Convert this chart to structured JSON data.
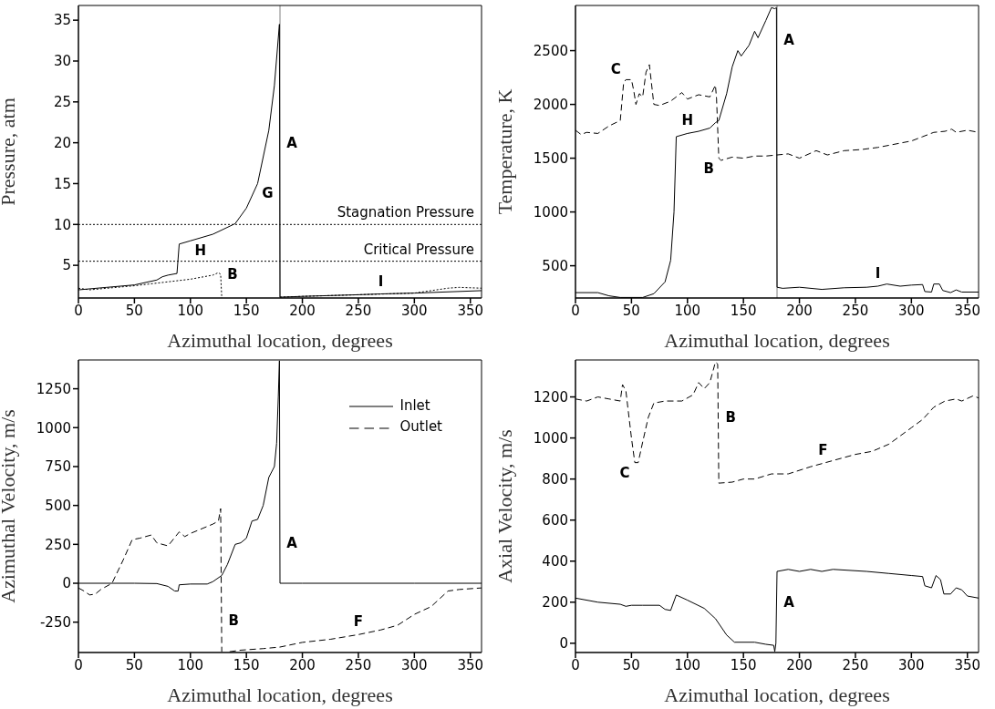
{
  "chart_data": [
    {
      "type": "line",
      "xlabel": "Azimuthal location, degrees",
      "ylabel": "Pressure, atm",
      "xlim": [
        0,
        360
      ],
      "xticks": [
        0,
        50,
        100,
        150,
        200,
        250,
        300,
        350
      ],
      "ylim": [
        1,
        36.8
      ],
      "yticks": [
        5,
        10,
        15,
        20,
        25,
        30,
        35
      ],
      "series": [
        {
          "color": "#000000",
          "line_style": "solid",
          "x": [
            0,
            25,
            50,
            70,
            75,
            80,
            88,
            90,
            100,
            120,
            140,
            150,
            160,
            170,
            175,
            178,
            179.5,
            180,
            200,
            250,
            270,
            300,
            360
          ],
          "values": [
            2.0,
            2.3,
            2.6,
            3.2,
            3.6,
            3.8,
            4.0,
            7.6,
            8.0,
            8.8,
            10.1,
            12,
            15,
            21.5,
            27,
            32,
            34.5,
            1.1,
            1.2,
            1.4,
            1.5,
            1.6,
            1.9
          ]
        },
        {
          "color": "#000000",
          "line_style": "dotted",
          "x": [
            0,
            10,
            50,
            100,
            120,
            125,
            127,
            128,
            129,
            180,
            200,
            250,
            300,
            330,
            340,
            360
          ],
          "values": [
            2.2,
            2.0,
            2.5,
            3.3,
            3.8,
            4.1,
            3.9,
            1.0,
            null,
            1.1,
            1.2,
            1.4,
            1.6,
            2.2,
            2.3,
            2.2
          ]
        }
      ],
      "ref_lines": [
        {
          "axis": "y",
          "value": 10,
          "label": "Stagnation Pressure",
          "color": "#000000",
          "line_style": "dotted"
        },
        {
          "axis": "y",
          "value": 5.5,
          "label": "Critical Pressure",
          "color": "#000000",
          "line_style": "dotted"
        },
        {
          "axis": "x",
          "value": 180,
          "color": "#808080",
          "line_style": "solid"
        }
      ],
      "annotations": [
        {
          "text": "G",
          "x": 160,
          "y": 15
        },
        {
          "text": "A",
          "x": 180,
          "y": 20
        },
        {
          "text": "H",
          "x": 100,
          "y": 8.0
        },
        {
          "text": "B",
          "x": 127,
          "y": 3.9
        },
        {
          "text": "I",
          "x": 270,
          "y": 1.5
        }
      ]
    },
    {
      "type": "line",
      "xlabel": "Azimuthal location, degrees",
      "ylabel": "Temperature, K",
      "xlim": [
        0,
        360
      ],
      "xticks": [
        0,
        50,
        100,
        150,
        200,
        250,
        300,
        350
      ],
      "ylim": [
        200,
        2920
      ],
      "yticks": [
        500,
        1000,
        1500,
        2000,
        2500
      ],
      "series": [
        {
          "color": "#000000",
          "line_style": "solid",
          "x": [
            0,
            20,
            30,
            40,
            60,
            70,
            80,
            85,
            88,
            90,
            100,
            110,
            120,
            125,
            128,
            135,
            140,
            145,
            148,
            155,
            160,
            163,
            170,
            175,
            178,
            179.5,
            180,
            185,
            200,
            220,
            240,
            260,
            270,
            278,
            290,
            300,
            310,
            312,
            318,
            320,
            325,
            328,
            335,
            340,
            345,
            360
          ],
          "values": [
            250,
            250,
            220,
            205,
            205,
            240,
            350,
            550,
            1000,
            1700,
            1730,
            1750,
            1780,
            1830,
            1850,
            2100,
            2350,
            2500,
            2450,
            2550,
            2680,
            2620,
            2780,
            2900,
            2890,
            2900,
            300,
            290,
            300,
            280,
            295,
            300,
            310,
            330,
            310,
            320,
            325,
            260,
            255,
            330,
            330,
            270,
            250,
            275,
            255,
            255
          ]
        },
        {
          "color": "#000000",
          "line_style": "dashed",
          "x": [
            0,
            5,
            10,
            20,
            30,
            40,
            43,
            45,
            50,
            52,
            54,
            57,
            60,
            63,
            66,
            70,
            75,
            85,
            95,
            100,
            110,
            120,
            125,
            126,
            128,
            130,
            140,
            150,
            160,
            170,
            180,
            190,
            200,
            215,
            225,
            240,
            255,
            270,
            280,
            290,
            300,
            310,
            320,
            330,
            336,
            340,
            350,
            360
          ],
          "values": [
            1760,
            1720,
            1740,
            1730,
            1800,
            1850,
            2200,
            2230,
            2230,
            2130,
            2000,
            2100,
            2070,
            2300,
            2370,
            2000,
            1990,
            2030,
            2110,
            2050,
            2090,
            2070,
            2180,
            2050,
            1500,
            1480,
            1510,
            1500,
            1520,
            1520,
            1530,
            1540,
            1500,
            1570,
            1530,
            1570,
            1580,
            1600,
            1620,
            1640,
            1660,
            1700,
            1740,
            1750,
            1770,
            1740,
            1760,
            1740
          ]
        }
      ],
      "ref_lines": [
        {
          "axis": "x",
          "value": 180,
          "color": "#808080",
          "line_style": "solid"
        }
      ],
      "annotations": [
        {
          "text": "C",
          "x": 45,
          "y": 2230
        },
        {
          "text": "H",
          "x": 100,
          "y": 1730
        },
        {
          "text": "B",
          "x": 128,
          "y": 1500
        },
        {
          "text": "A",
          "x": 180,
          "y": 2600
        },
        {
          "text": "I",
          "x": 270,
          "y": 310
        }
      ]
    },
    {
      "type": "line",
      "xlabel": "Azimuthal location, degrees",
      "ylabel": "Azimuthal Velocity, m/s",
      "xlim": [
        0,
        360
      ],
      "xticks": [
        0,
        50,
        100,
        150,
        200,
        250,
        300,
        350
      ],
      "ylim": [
        -445,
        1435
      ],
      "yticks": [
        -250,
        0,
        250,
        500,
        750,
        1000,
        1250
      ],
      "legend": "top right",
      "series": [
        {
          "name": "Inlet",
          "color": "#000000",
          "line_style": "solid",
          "x": [
            0,
            50,
            70,
            80,
            86,
            89,
            90,
            100,
            115,
            120,
            128,
            133,
            140,
            145,
            150,
            155,
            160,
            165,
            170,
            175,
            177,
            178.5,
            179.5,
            180,
            200,
            300,
            360
          ],
          "values": [
            0,
            0,
            -2,
            -20,
            -50,
            -50,
            -10,
            -5,
            -5,
            10,
            50,
            120,
            250,
            260,
            290,
            400,
            410,
            500,
            680,
            750,
            900,
            1200,
            1430,
            0,
            0,
            0,
            0
          ]
        },
        {
          "name": "Outlet",
          "color": "#000000",
          "line_style": "dashed",
          "x": [
            0,
            5,
            10,
            15,
            20,
            30,
            40,
            48,
            55,
            65,
            70,
            80,
            90,
            95,
            100,
            110,
            120,
            125,
            127,
            128,
            129,
            135,
            145,
            165,
            180,
            200,
            225,
            250,
            270,
            285,
            300,
            315,
            330,
            340,
            360
          ],
          "values": [
            -30,
            -50,
            -75,
            -70,
            -40,
            0,
            150,
            280,
            290,
            310,
            260,
            240,
            330,
            300,
            320,
            350,
            380,
            400,
            480,
            -440,
            null,
            -440,
            -430,
            -420,
            -410,
            -380,
            -360,
            -330,
            -300,
            -270,
            -200,
            -150,
            -50,
            -40,
            -30
          ]
        }
      ],
      "annotations": [
        {
          "text": "B",
          "x": 128,
          "y": -240
        },
        {
          "text": "A",
          "x": 180,
          "y": 260
        },
        {
          "text": "F",
          "x": 250,
          "y": -330
        }
      ]
    },
    {
      "type": "line",
      "xlabel": "Azimuthal location, degrees",
      "ylabel": "Axial Velocity, m/s",
      "xlim": [
        0,
        360
      ],
      "xticks": [
        0,
        50,
        100,
        150,
        200,
        250,
        300,
        350
      ],
      "ylim": [
        -45,
        1380
      ],
      "yticks": [
        0,
        200,
        400,
        600,
        800,
        1000,
        1200
      ],
      "series": [
        {
          "color": "#000000",
          "line_style": "solid",
          "x": [
            0,
            20,
            40,
            45,
            50,
            60,
            75,
            80,
            85,
            90,
            100,
            115,
            125,
            135,
            142,
            160,
            170,
            177,
            178,
            179,
            180,
            190,
            200,
            210,
            220,
            230,
            260,
            280,
            300,
            310,
            312,
            318,
            322,
            326,
            329,
            335,
            340,
            345,
            350,
            360
          ],
          "values": [
            220,
            200,
            190,
            180,
            185,
            185,
            185,
            165,
            160,
            235,
            210,
            170,
            120,
            40,
            5,
            5,
            -5,
            -10,
            -40,
            0,
            350,
            360,
            350,
            360,
            350,
            360,
            350,
            340,
            330,
            325,
            280,
            270,
            330,
            310,
            240,
            240,
            270,
            260,
            230,
            220
          ]
        },
        {
          "color": "#000000",
          "line_style": "dashed",
          "x": [
            0,
            10,
            20,
            30,
            40,
            42,
            45,
            50,
            53,
            56,
            60,
            65,
            70,
            80,
            95,
            105,
            110,
            115,
            120,
            125,
            127,
            128,
            140,
            150,
            160,
            175,
            190,
            210,
            230,
            250,
            265,
            280,
            300,
            310,
            320,
            330,
            340,
            345,
            355,
            360
          ],
          "values": [
            1190,
            1180,
            1200,
            1190,
            1180,
            1260,
            1230,
            1000,
            880,
            880,
            980,
            1100,
            1170,
            1180,
            1180,
            1210,
            1270,
            1240,
            1270,
            1370,
            1360,
            780,
            785,
            800,
            800,
            825,
            825,
            860,
            890,
            920,
            935,
            970,
            1050,
            1090,
            1150,
            1180,
            1190,
            1180,
            1205,
            1195
          ]
        }
      ],
      "annotations": [
        {
          "text": "C",
          "x": 53,
          "y": 880
        },
        {
          "text": "B",
          "x": 128,
          "y": 1100
        },
        {
          "text": "F",
          "x": 230,
          "y": 890
        },
        {
          "text": "A",
          "x": 180,
          "y": 200
        }
      ]
    }
  ]
}
